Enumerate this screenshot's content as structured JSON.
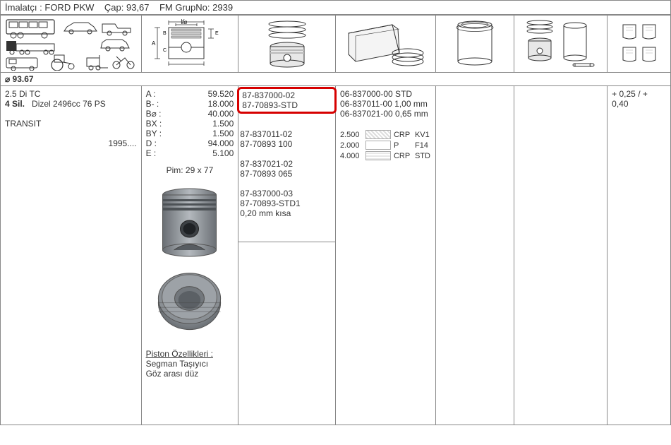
{
  "header": {
    "manufacturer_label": "İmalatçı :",
    "manufacturer": "FORD PKW",
    "diameter_label": "Çap:",
    "diameter": "93,67",
    "group_label": "FM GrupNo:",
    "group": "2939"
  },
  "diameter_row": "⌀  93.67",
  "engine": {
    "line1": "2.5 Di TC",
    "cyl_bold": "4 Sil.",
    "cyl_rest": "Dizel 2496cc 76 PS",
    "model": "TRANSIT",
    "year": "1995...."
  },
  "dimensions": {
    "rows": [
      {
        "label": "A :",
        "value": "59.520"
      },
      {
        "label": "B- :",
        "value": "18.000"
      },
      {
        "label": "B⌀ :",
        "value": "40.000"
      },
      {
        "label": "BX :",
        "value": "1.500"
      },
      {
        "label": "BY :",
        "value": "1.500"
      },
      {
        "label": "D :",
        "value": "94.000"
      },
      {
        "label": "E :",
        "value": "5.100"
      }
    ],
    "pin": "Pim: 29 x 77",
    "features_title": "Piston Özellikleri :",
    "features_l1": "Segman Taşıyıcı",
    "features_l2": "Göz arası düz"
  },
  "piston_parts": {
    "hl1": "87-837000-02",
    "hl2": "87-70893-STD",
    "p1a": "87-837011-02",
    "p1b": "87-70893 100",
    "p2a": "87-837021-02",
    "p2b": "87-70893 065",
    "p3a": "87-837000-03",
    "p3b": "87-70893-STD1",
    "p3c": "0,20 mm kısa"
  },
  "ring_parts": {
    "r1": "06-837000-00 STD",
    "r2": "06-837011-00 1,00 mm",
    "r3": "06-837021-00 0,65 mm",
    "specs": [
      {
        "n": "2.500",
        "t": "CRP",
        "c": "KV1",
        "style": "hatch"
      },
      {
        "n": "2.000",
        "t": "P",
        "c": "F14",
        "style": "plain"
      },
      {
        "n": "4.000",
        "t": "CRP",
        "c": "STD",
        "style": "lines"
      }
    ]
  },
  "over": "+ 0,25 / + 0,40"
}
